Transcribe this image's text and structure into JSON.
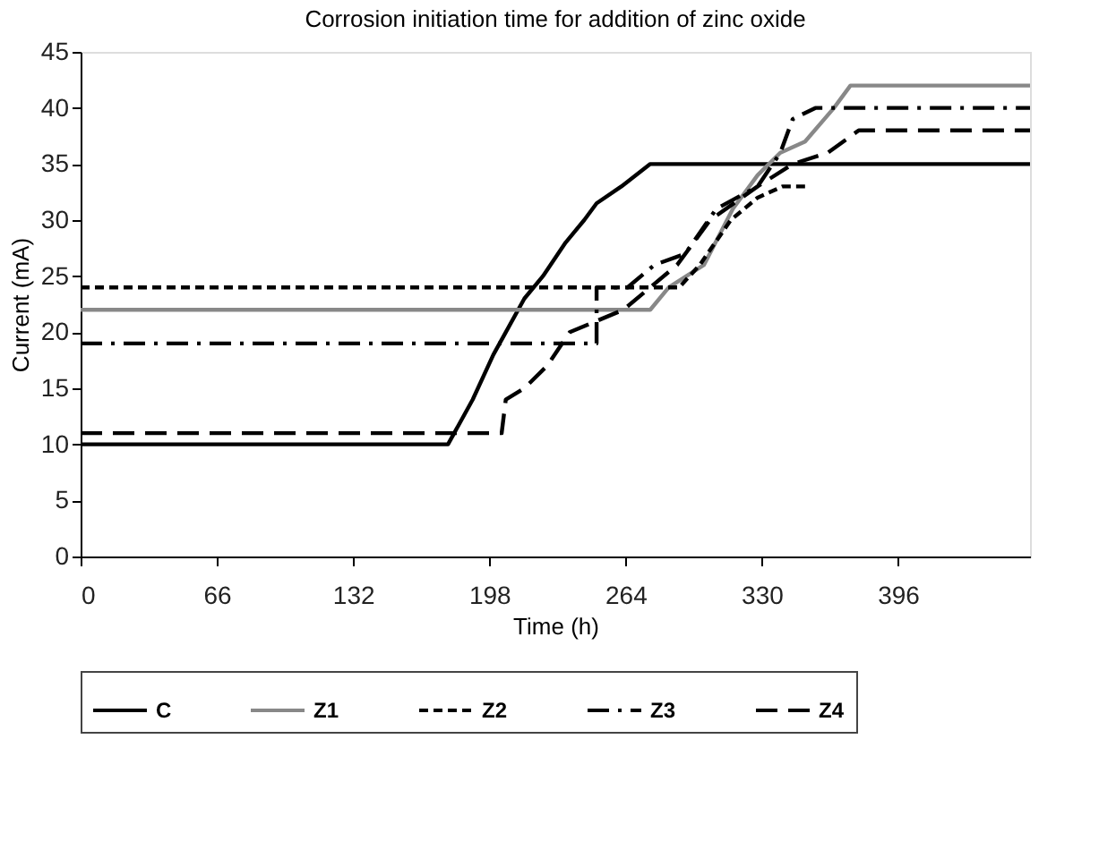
{
  "chart_data": {
    "type": "line",
    "title": "Corrosion initiation time for addition of zinc oxide",
    "xlabel": "Time (h)",
    "ylabel": "Current (mA)",
    "xlim": [
      0,
      460
    ],
    "xticks": [
      0,
      66,
      132,
      198,
      264,
      330,
      396
    ],
    "ylim": [
      0,
      45
    ],
    "yticks": [
      0,
      5,
      10,
      15,
      20,
      25,
      30,
      35,
      40,
      45
    ],
    "grid": false,
    "legend": "bottom",
    "marker": "none",
    "series": [
      {
        "name": "C",
        "color": "#000000",
        "line_style": "solid",
        "x": [
          0,
          178,
          190,
          200,
          206,
          215,
          224,
          235,
          244,
          250,
          262,
          276,
          460
        ],
        "values": [
          10,
          10,
          14,
          18,
          20,
          23,
          25,
          28,
          30,
          31.5,
          33,
          35,
          35
        ]
      },
      {
        "name": "Z1",
        "color": "#888888",
        "line_style": "solid",
        "x": [
          0,
          276,
          285,
          302,
          316,
          328,
          339,
          351,
          365,
          373,
          460
        ],
        "values": [
          22,
          22,
          24,
          26,
          31,
          34,
          36,
          37,
          40,
          42,
          42
        ]
      },
      {
        "name": "Z2",
        "color": "#000000",
        "line_style": "dotted",
        "x": [
          0,
          290,
          300,
          315,
          328,
          340,
          351
        ],
        "values": [
          24,
          24,
          26,
          30,
          32,
          33,
          33
        ]
      },
      {
        "name": "Z3",
        "color": "#000000",
        "line_style": "dashdot",
        "x": [
          0,
          250,
          250,
          265,
          278,
          293,
          308,
          328,
          339,
          345,
          356,
          460
        ],
        "values": [
          19,
          19,
          24,
          24,
          26,
          27,
          31,
          33,
          36,
          39,
          40,
          40
        ]
      },
      {
        "name": "Z4",
        "color": "#000000",
        "line_style": "dashed",
        "x": [
          0,
          204,
          206,
          215,
          226,
          237,
          250,
          263,
          276,
          289,
          305,
          328,
          345,
          362,
          377,
          460
        ],
        "values": [
          11,
          11,
          14,
          15,
          17,
          20,
          21,
          22,
          24,
          26,
          30,
          33,
          35,
          36,
          38,
          38
        ]
      }
    ]
  }
}
